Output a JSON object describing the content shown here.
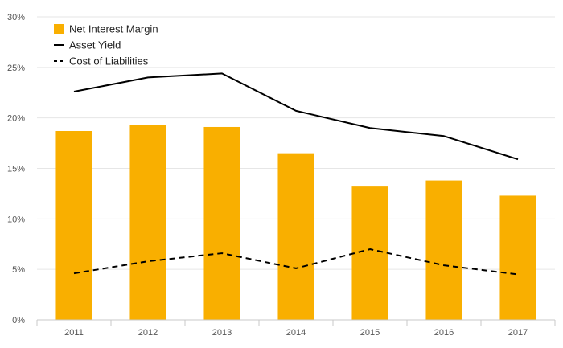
{
  "chart_data": {
    "type": "bar",
    "categories": [
      "2011",
      "2012",
      "2013",
      "2014",
      "2015",
      "2016",
      "2017"
    ],
    "series": [
      {
        "name": "Net Interest Margin",
        "kind": "bar",
        "color": "#F9AF00",
        "values": [
          18.7,
          19.3,
          19.1,
          16.5,
          13.2,
          13.8,
          12.3
        ]
      },
      {
        "name": "Asset Yield",
        "kind": "line",
        "style": "solid",
        "color": "#000000",
        "values": [
          22.6,
          24.0,
          24.4,
          20.7,
          19.0,
          18.2,
          15.9
        ]
      },
      {
        "name": "Cost of Liabilities",
        "kind": "line",
        "style": "dashed",
        "color": "#000000",
        "values": [
          4.6,
          5.8,
          6.6,
          5.1,
          7.0,
          5.4,
          4.5
        ]
      }
    ],
    "y_ticks": [
      "0%",
      "5%",
      "10%",
      "15%",
      "20%",
      "25%",
      "30%"
    ],
    "ylim": [
      0,
      30
    ],
    "grid": true,
    "legend_position": "top-left"
  }
}
